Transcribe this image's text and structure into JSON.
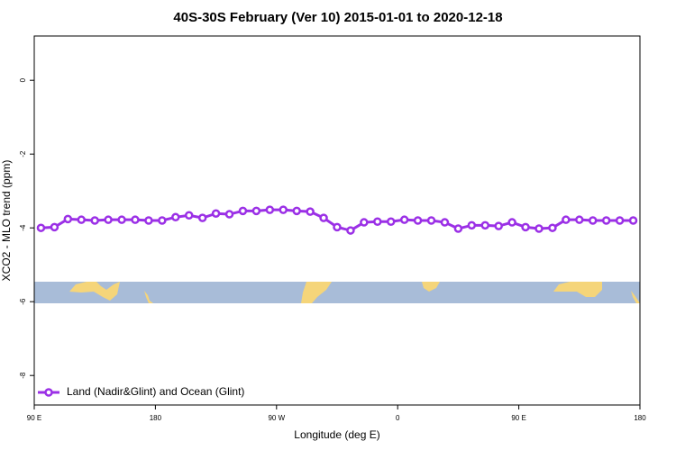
{
  "chart_data": {
    "type": "line",
    "title": "40S-30S February (Ver 10)   2015-01-01 to 2020-12-18",
    "x_label": "Longitude (deg E)",
    "y_label": "XCO2 - MLO trend (ppm)",
    "x": [
      95,
      105,
      115,
      125,
      135,
      145,
      155,
      165,
      175,
      185,
      195,
      205,
      215,
      225,
      235,
      245,
      255,
      265,
      275,
      285,
      295,
      305,
      315,
      325,
      335,
      345,
      355,
      365,
      375,
      385,
      395,
      405,
      415,
      425,
      435,
      445,
      455,
      465,
      475,
      485,
      495,
      505,
      515,
      525,
      535
    ],
    "series": [
      {
        "name": "Land (Nadir&Glint) and Ocean (Glint)",
        "color": "#9b30e6",
        "values": [
          -4.0,
          -3.98,
          -3.76,
          -3.78,
          -3.8,
          -3.78,
          -3.78,
          -3.78,
          -3.8,
          -3.8,
          -3.71,
          -3.66,
          -3.73,
          -3.61,
          -3.63,
          -3.54,
          -3.54,
          -3.51,
          -3.51,
          -3.54,
          -3.56,
          -3.73,
          -3.98,
          -4.07,
          -3.85,
          -3.83,
          -3.83,
          -3.78,
          -3.8,
          -3.8,
          -3.85,
          -4.02,
          -3.93,
          -3.93,
          -3.95,
          -3.85,
          -3.98,
          -4.02,
          -4.0,
          -3.78,
          -3.78,
          -3.8,
          -3.8,
          -3.8,
          -3.8
        ]
      }
    ],
    "xlim": [
      90,
      540
    ],
    "xticks": [
      {
        "value": 90,
        "label": "90 E"
      },
      {
        "value": 180,
        "label": "180"
      },
      {
        "value": 270,
        "label": "90 W"
      },
      {
        "value": 360,
        "label": "0"
      },
      {
        "value": 450,
        "label": "90 E"
      },
      {
        "value": 540,
        "label": "180"
      }
    ],
    "ylim": [
      -8.8,
      1.2
    ],
    "yticks": [
      0,
      -2,
      -4,
      -6,
      -8
    ],
    "legend": "bottom-left"
  }
}
